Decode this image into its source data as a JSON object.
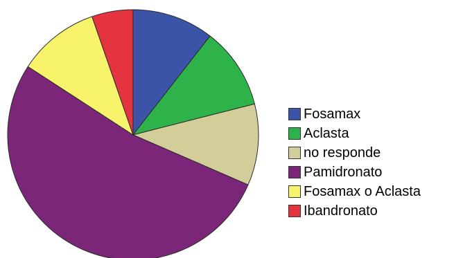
{
  "chart_data": {
    "type": "pie",
    "title": "",
    "start_angle_deg": 0,
    "direction": "clockwise",
    "legend_position": "right",
    "series": [
      {
        "name": "Fosamax",
        "value": 10.5,
        "color": "#3c54a8"
      },
      {
        "name": "Aclasta",
        "value": 10.5,
        "color": "#2eb34a"
      },
      {
        "name": "no responde",
        "value": 10.5,
        "color": "#d3cd9a"
      },
      {
        "name": "Pamidronato",
        "value": 52.6,
        "color": "#7b2678"
      },
      {
        "name": "Fosamax o Aclasta",
        "value": 10.5,
        "color": "#f7f36a"
      },
      {
        "name": "Ibandronato",
        "value": 5.3,
        "color": "#e5343f"
      }
    ]
  }
}
